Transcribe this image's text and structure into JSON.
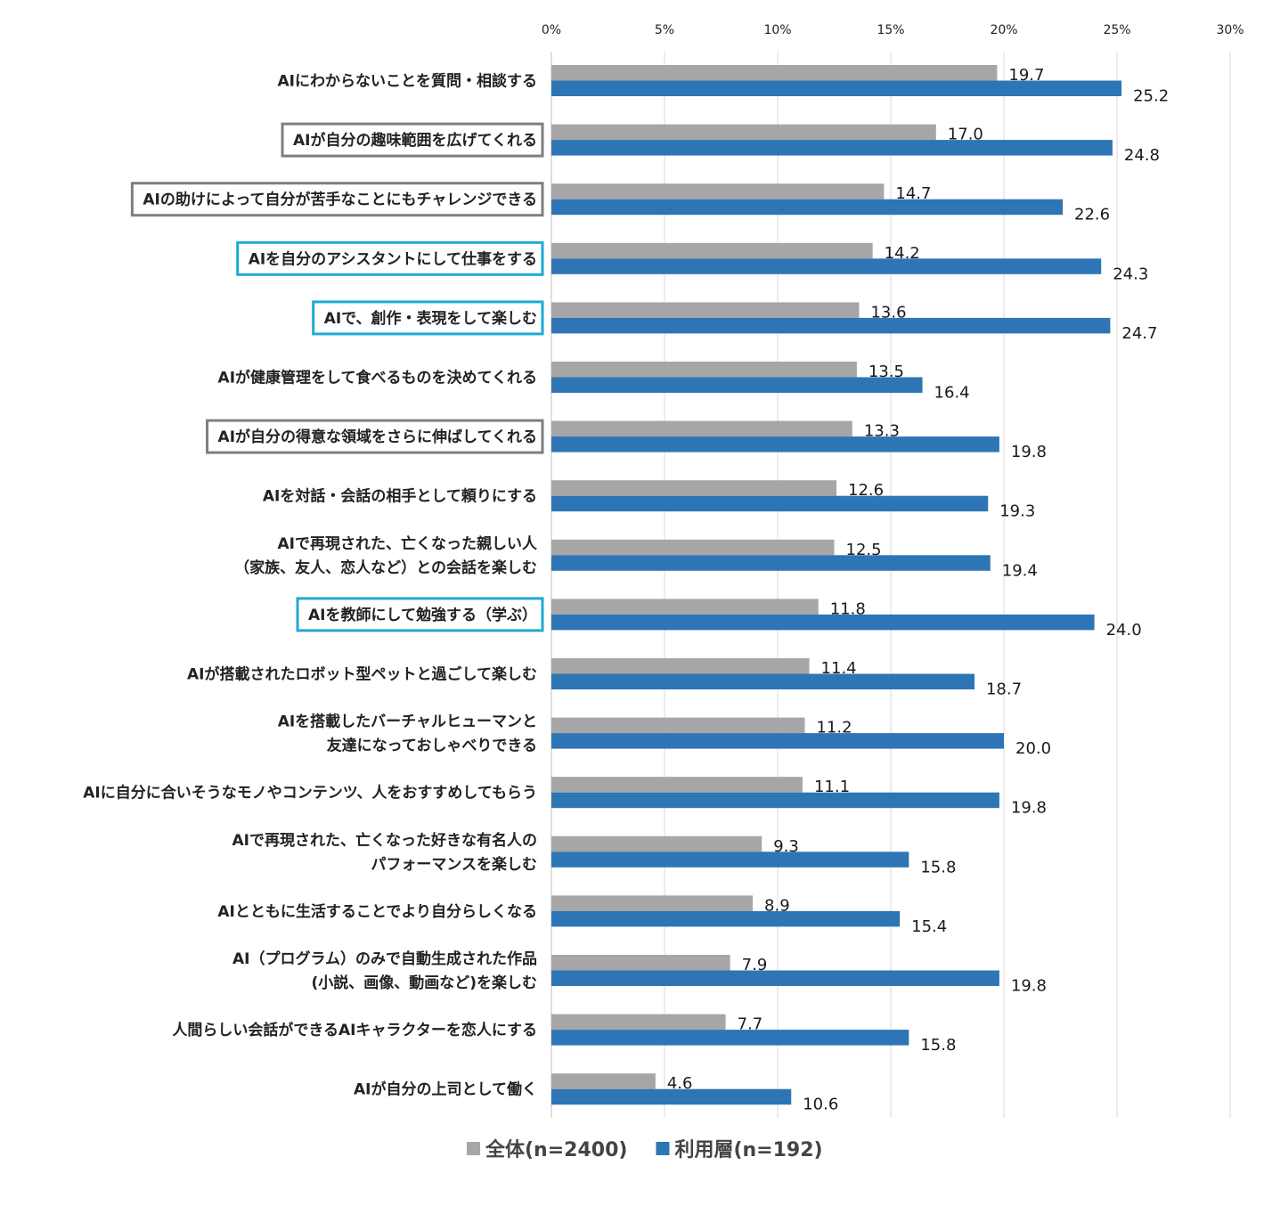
{
  "chart_data": {
    "type": "bar",
    "orientation": "horizontal",
    "categories": [
      [
        "AIにわからないことを質問・相談する"
      ],
      [
        "AIが自分の趣味範囲を広げてくれる"
      ],
      [
        "AIの助けによって自分が苦手なことにもチャレンジできる"
      ],
      [
        "AIを自分のアシスタントにして仕事をする"
      ],
      [
        "AIで、創作・表現をして楽しむ"
      ],
      [
        "AIが健康管理をして食べるものを決めてくれる"
      ],
      [
        "AIが自分の得意な領域をさらに伸ばしてくれる"
      ],
      [
        "AIを対話・会話の相手として頼りにする"
      ],
      [
        "AIで再現された、亡くなった親しい人",
        "（家族、友人、恋人など）との会話を楽しむ"
      ],
      [
        "AIを教師にして勉強する（学ぶ）"
      ],
      [
        "AIが搭載されたロボット型ペットと過ごして楽しむ"
      ],
      [
        "AIを搭載したバーチャルヒューマンと",
        "友達になっておしゃべりできる"
      ],
      [
        "AIに自分に合いそうなモノやコンテンツ、人をおすすめしてもらう"
      ],
      [
        "AIで再現された、亡くなった好きな有名人の",
        "パフォーマンスを楽しむ"
      ],
      [
        "AIとともに生活することでより自分らしくなる"
      ],
      [
        "AI（プログラム）のみで自動生成された作品",
        "(小説、画像、動画など)を楽しむ"
      ],
      [
        "人間らしい会話ができるAIキャラクターを恋人にする"
      ],
      [
        "AIが自分の上司として働く"
      ]
    ],
    "highlight": [
      "none",
      "gray",
      "gray",
      "blue",
      "blue",
      "none",
      "gray",
      "none",
      "none",
      "blue",
      "none",
      "none",
      "none",
      "none",
      "none",
      "none",
      "none",
      "none"
    ],
    "series": [
      {
        "name": "全体(n=2400)",
        "color": "#a6a6a6",
        "values": [
          19.7,
          17.0,
          14.7,
          14.2,
          13.6,
          13.5,
          13.3,
          12.6,
          12.5,
          11.8,
          11.4,
          11.2,
          11.1,
          9.3,
          8.9,
          7.9,
          7.7,
          4.6
        ],
        "labels": [
          "19.7",
          "17.0",
          "14.7",
          "14.2",
          "13.6",
          "13.5",
          "13.3",
          "12.6",
          "12.5",
          "11.8",
          "11.4",
          "11.2",
          "11.1",
          "9.3",
          "8.9",
          "7.9",
          "7.7",
          "4.6"
        ]
      },
      {
        "name": "利用層(n=192)",
        "color": "#2e75b6",
        "values": [
          25.2,
          24.8,
          22.6,
          24.3,
          24.7,
          16.4,
          19.8,
          19.3,
          19.4,
          24.0,
          18.7,
          20.0,
          19.8,
          15.8,
          15.4,
          19.8,
          15.8,
          10.6
        ],
        "labels": [
          "25.2",
          "24.8",
          "22.6",
          "24.3",
          "24.7",
          "16.4",
          "19.8",
          "19.3",
          "19.4",
          "24.0",
          "18.7",
          "20.0",
          "19.8",
          "15.8",
          "15.4",
          "19.8",
          "15.8",
          "10.6"
        ]
      }
    ],
    "xlim": [
      0,
      30
    ],
    "xticks": [
      "0%",
      "5%",
      "10%",
      "15%",
      "20%",
      "25%",
      "30%"
    ],
    "axis_position": "top",
    "grid": true,
    "legend_position": "bottom",
    "highlight_colors": {
      "gray": "#7f7f7f",
      "blue": "#1fa9d6"
    }
  }
}
